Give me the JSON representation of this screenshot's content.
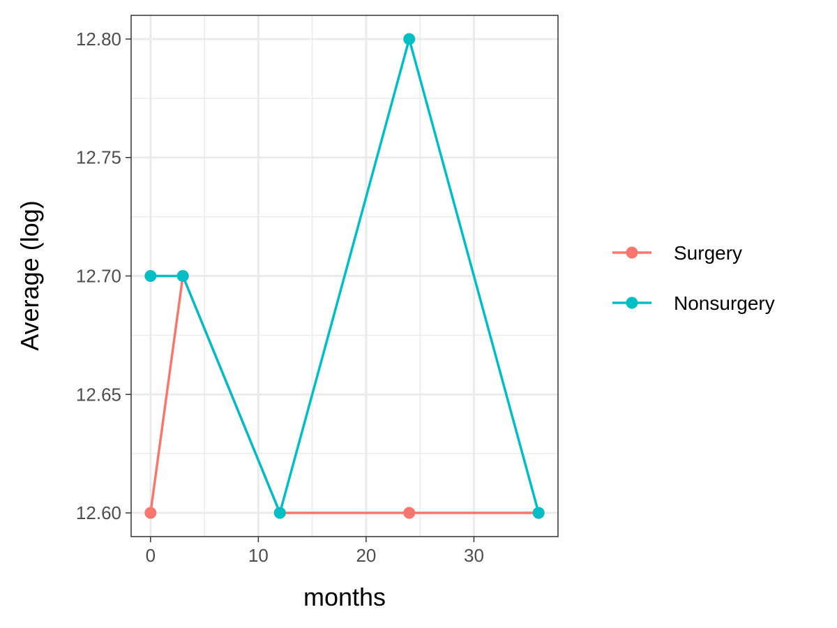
{
  "chart_data": {
    "type": "line",
    "title": "",
    "xlabel": "months",
    "ylabel": "Average (log)",
    "xlim": [
      -1.8,
      37.8
    ],
    "ylim": [
      12.59,
      12.81
    ],
    "x_ticks": [
      0,
      10,
      20,
      30
    ],
    "y_ticks": [
      12.6,
      12.65,
      12.7,
      12.75,
      12.8
    ],
    "x_tick_labels": [
      "0",
      "10",
      "20",
      "30"
    ],
    "y_tick_labels": [
      "12.60",
      "12.65",
      "12.70",
      "12.75",
      "12.80"
    ],
    "grid": true,
    "legend_position": "right",
    "series": [
      {
        "name": "Surgery",
        "color": "#F8766D",
        "x": [
          0,
          3,
          12,
          24,
          36
        ],
        "y": [
          12.6,
          12.7,
          12.6,
          12.6,
          12.6
        ]
      },
      {
        "name": "Nonsurgery",
        "color": "#00BFC4",
        "x": [
          0,
          3,
          12,
          24,
          36
        ],
        "y": [
          12.7,
          12.7,
          12.6,
          12.8,
          12.6
        ]
      }
    ]
  }
}
